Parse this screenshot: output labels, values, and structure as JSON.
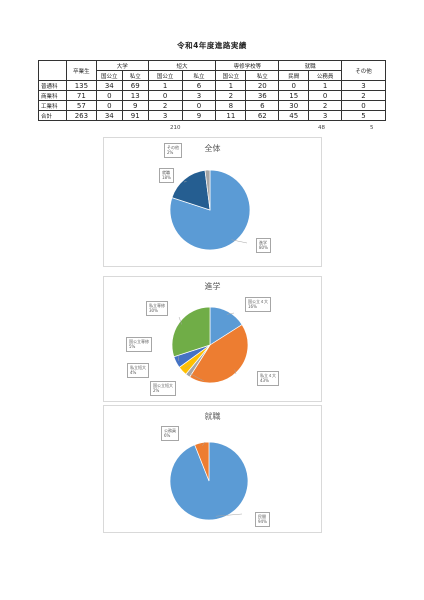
{
  "title": "令和4年度進路実績",
  "table": {
    "headers": {
      "graduates": "卒業生",
      "university": "大学",
      "junior_college": "短大",
      "vocational": "専修学校等",
      "employment": "就職",
      "other": "その他",
      "public": "国公立",
      "private": "私立",
      "private_sector": "民間",
      "civil_servant": "公務員"
    },
    "rows": [
      {
        "label": "普通科",
        "cells": [
          "135",
          "34",
          "69",
          "1",
          "6",
          "1",
          "20",
          "0",
          "1",
          "3"
        ]
      },
      {
        "label": "商業科",
        "cells": [
          "71",
          "0",
          "13",
          "0",
          "3",
          "2",
          "36",
          "15",
          "0",
          "2"
        ]
      },
      {
        "label": "工業科",
        "cells": [
          "57",
          "0",
          "9",
          "2",
          "0",
          "8",
          "6",
          "30",
          "2",
          "0"
        ]
      },
      {
        "label": "合計",
        "cells": [
          "263",
          "34",
          "91",
          "3",
          "9",
          "11",
          "62",
          "45",
          "3",
          "5"
        ]
      }
    ],
    "subtotals": {
      "advancement": "210",
      "employment": "48",
      "other": "5"
    }
  },
  "chart_data": [
    {
      "type": "pie",
      "title": "全体",
      "labels": [
        "進学",
        "就職",
        "その他"
      ],
      "values": [
        80,
        18,
        2
      ],
      "colors": [
        "#5b9bd5",
        "#255e91",
        "#a5a5a5"
      ],
      "data_labels": [
        "80%",
        "18%",
        "2%"
      ]
    },
    {
      "type": "pie",
      "title": "進学",
      "labels": [
        "国公立４大",
        "私立４大",
        "国公立短大",
        "私立短大",
        "国公立専修",
        "私立専修"
      ],
      "values": [
        16,
        43,
        2,
        4,
        5,
        30
      ],
      "colors": [
        "#5b9bd5",
        "#ed7d31",
        "#a5a5a5",
        "#ffc000",
        "#4472c4",
        "#70ad47"
      ],
      "data_labels": [
        "16%",
        "43%",
        "2%",
        "4%",
        "5%",
        "30%"
      ]
    },
    {
      "type": "pie",
      "title": "就職",
      "labels": [
        "民間",
        "公務員"
      ],
      "values": [
        94,
        6
      ],
      "colors": [
        "#5b9bd5",
        "#ed7d31"
      ],
      "data_labels": [
        "94%",
        "6%"
      ]
    }
  ]
}
